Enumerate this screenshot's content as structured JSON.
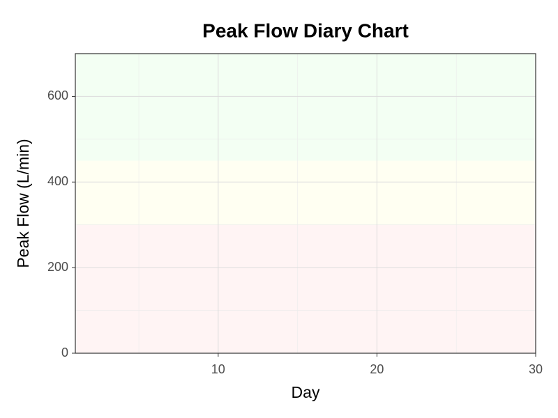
{
  "chart_data": {
    "type": "line",
    "title": "Peak Flow Diary Chart",
    "x_label": "Day",
    "y_label": "Peak Flow (L/min)",
    "xlim": [
      1,
      30
    ],
    "xticks": [
      10,
      20,
      30
    ],
    "xminor": [
      5,
      15,
      25
    ],
    "ylim": [
      0,
      700
    ],
    "yticks": [
      0,
      200,
      400,
      600
    ],
    "yminor": [
      100,
      300,
      500
    ],
    "grid": true,
    "bands": [
      {
        "from": 0,
        "to": 300,
        "color": "#fff4f4"
      },
      {
        "from": 300,
        "to": 450,
        "color": "#fffff2"
      },
      {
        "from": 450,
        "to": 700,
        "color": "#f3fff3"
      }
    ],
    "series": []
  }
}
